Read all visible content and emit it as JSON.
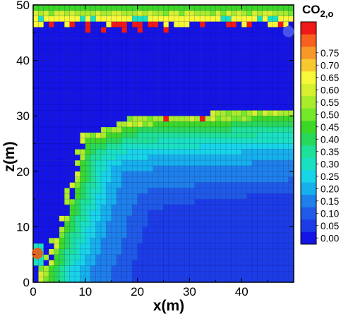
{
  "chart_data": {
    "type": "heatmap",
    "xlabel": "x(m)",
    "ylabel": "z(m)",
    "xlim": [
      0,
      50
    ],
    "ylim": [
      0,
      50
    ],
    "x_ticks": [
      "0",
      "10",
      "20",
      "30",
      "40"
    ],
    "y_ticks": [
      "0",
      "10",
      "20",
      "30",
      "40",
      "50"
    ],
    "grid_resolution_m": 1,
    "colorbar": {
      "title": "CO",
      "title_subscript": "2,o",
      "levels": [
        "0.00",
        "0.05",
        "0.10",
        "0.15",
        "0.20",
        "0.25",
        "0.30",
        "0.35",
        "0.40",
        "0.45",
        "0.50",
        "0.55",
        "0.60",
        "0.65",
        "0.70",
        "0.75"
      ],
      "colors": [
        "#1414e6",
        "#1c3ce8",
        "#1f5ae8",
        "#1e80ea",
        "#16b0ec",
        "#18d4e8",
        "#1ae0c2",
        "#1ee098",
        "#28d85a",
        "#3cd828",
        "#74e82a",
        "#a8ec2c",
        "#d6f030",
        "#f8f838",
        "#f8c830",
        "#f89828",
        "#f86020",
        "#f01818"
      ]
    },
    "markers": [
      {
        "name": "injection-well",
        "x": 0.8,
        "z": 5.2,
        "color": "#f05a14"
      },
      {
        "name": "monitor-point",
        "x": 49,
        "z": 45.2,
        "color": "#4a5af0"
      }
    ],
    "features": {
      "background_value": 0.0,
      "plume_region": "CO2 rises from lower-left source along x 5–15 m, spreads laterally beneath low-permeability layer at z≈30 m",
      "top_layer_value_range": [
        0.4,
        0.75
      ],
      "high_value_spots_z": [
        29,
        30,
        45,
        46
      ]
    }
  }
}
